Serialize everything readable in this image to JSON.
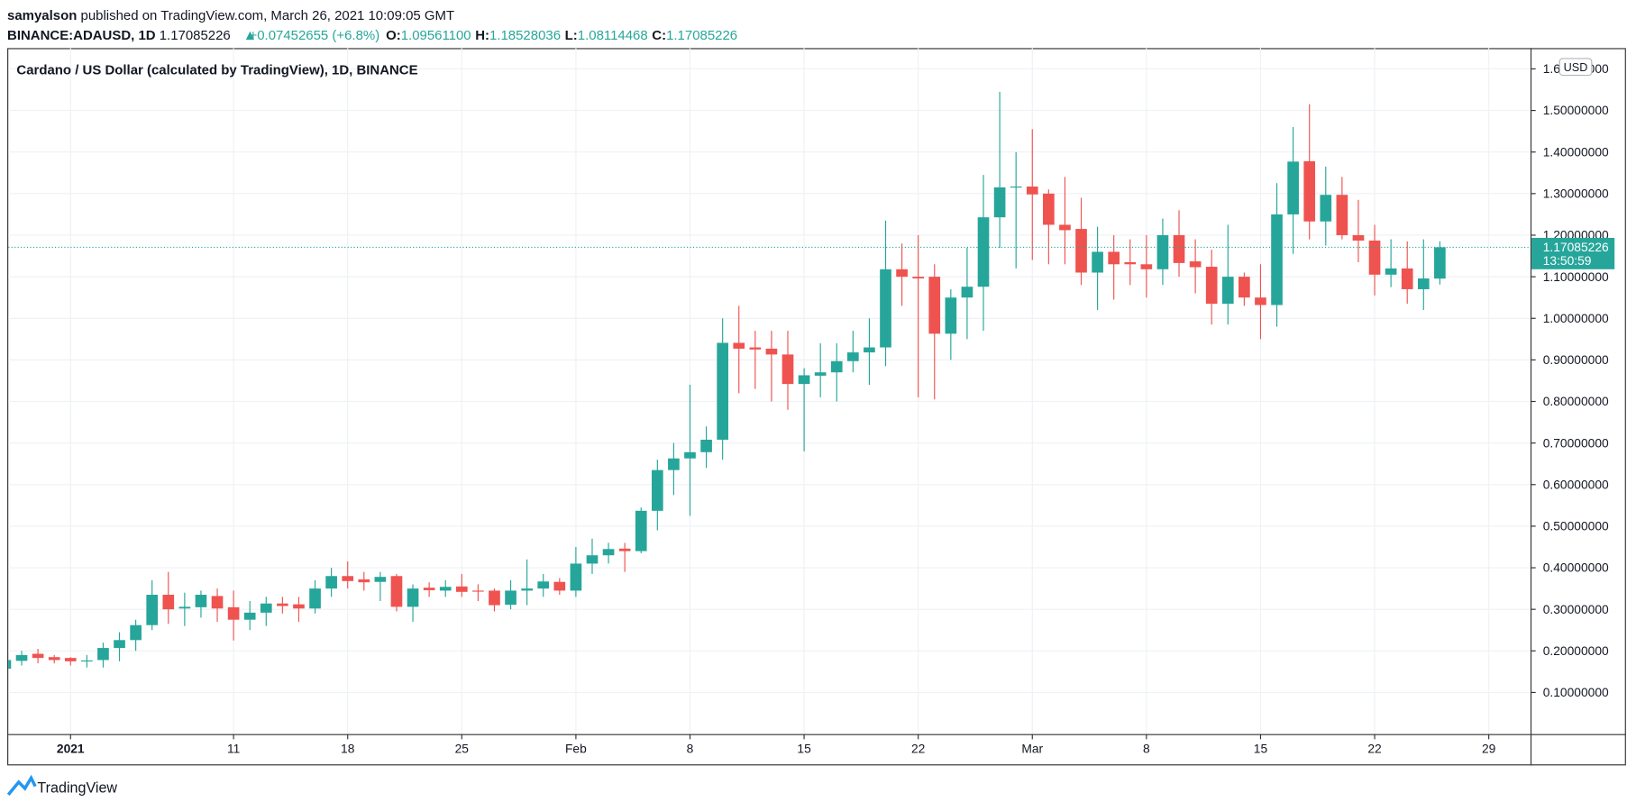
{
  "header": {
    "author": "samyalson",
    "published": "published on TradingView.com, March 26, 2021 10:09:05 GMT",
    "symbol": "BINANCE:ADAUSD, 1D",
    "last": "1.17085226",
    "change": "+0.07452655 (+6.8%)",
    "ohlc": [
      {
        "label": "O:",
        "value": "1.09561100"
      },
      {
        "label": "H:",
        "value": "1.18528036"
      },
      {
        "label": "L:",
        "value": "1.08114468"
      },
      {
        "label": "C:",
        "value": "1.17085226"
      }
    ]
  },
  "chart_data": {
    "type": "candlestick",
    "title": "Cardano / US Dollar (calculated by TradingView), 1D, BINANCE",
    "currency": "USD",
    "countdown": "13:50:59",
    "up_color": "#26a69a",
    "down_color": "#ef5350",
    "grid": true,
    "categories": [
      null,
      null,
      null,
      null,
      "2021",
      null,
      null,
      null,
      null,
      null,
      null,
      null,
      null,
      null,
      "11",
      null,
      null,
      null,
      null,
      null,
      null,
      "18",
      null,
      null,
      null,
      null,
      null,
      null,
      "25",
      null,
      null,
      null,
      null,
      null,
      null,
      "Feb",
      null,
      null,
      null,
      null,
      null,
      null,
      "8",
      null,
      null,
      null,
      null,
      null,
      null,
      "15",
      null,
      null,
      null,
      null,
      null,
      null,
      "22",
      null,
      null,
      null,
      null,
      null,
      null,
      "Mar",
      null,
      null,
      null,
      null,
      null,
      null,
      "8",
      null,
      null,
      null,
      null,
      null,
      null,
      "15",
      null,
      null,
      null,
      null,
      null,
      null,
      "22",
      null,
      null,
      null,
      null,
      null,
      null,
      "29",
      null,
      null
    ],
    "open": [
      0.157,
      0.176,
      0.193,
      0.185,
      0.183,
      0.175,
      0.178,
      0.207,
      0.226,
      0.262,
      0.335,
      0.302,
      0.305,
      0.332,
      0.305,
      0.275,
      0.292,
      0.314,
      0.312,
      0.302,
      0.35,
      0.38,
      0.372,
      0.366,
      0.38,
      0.306,
      0.352,
      0.345,
      0.355,
      0.345,
      0.345,
      0.311,
      0.345,
      0.35,
      0.366,
      0.345,
      0.41,
      0.43,
      0.446,
      0.44,
      0.537,
      0.635,
      0.663,
      0.678,
      0.708,
      0.941,
      0.93,
      0.927,
      0.913,
      0.842,
      0.862,
      0.87,
      0.897,
      0.918,
      0.93,
      1.118,
      1.1,
      1.1,
      0.963,
      1.05,
      1.076,
      1.243,
      1.315,
      1.317,
      1.3,
      1.225,
      1.215,
      1.11,
      1.16,
      1.135,
      1.13,
      1.118,
      1.2,
      1.137,
      1.124,
      1.035,
      1.1,
      1.05,
      1.032,
      1.25,
      1.378,
      1.233,
      1.297,
      1.2,
      1.187,
      1.105,
      1.12,
      1.07,
      1.095611,
      null,
      null,
      null,
      null,
      null
    ],
    "high": [
      0.18,
      0.2,
      0.205,
      0.19,
      0.185,
      0.19,
      0.22,
      0.245,
      0.275,
      0.37,
      0.39,
      0.34,
      0.345,
      0.35,
      0.345,
      0.32,
      0.33,
      0.33,
      0.33,
      0.37,
      0.4,
      0.415,
      0.39,
      0.39,
      0.385,
      0.36,
      0.365,
      0.37,
      0.385,
      0.36,
      0.35,
      0.37,
      0.42,
      0.385,
      0.375,
      0.45,
      0.47,
      0.46,
      0.46,
      0.545,
      0.66,
      0.7,
      0.84,
      0.74,
      1.0,
      1.03,
      0.97,
      0.97,
      0.97,
      0.88,
      0.94,
      0.94,
      0.97,
      1.0,
      1.235,
      1.18,
      1.2,
      1.13,
      1.07,
      1.17,
      1.345,
      1.545,
      1.4,
      1.455,
      1.31,
      1.34,
      1.29,
      1.22,
      1.2,
      1.19,
      1.2,
      1.24,
      1.26,
      1.19,
      1.165,
      1.225,
      1.11,
      1.13,
      1.325,
      1.46,
      1.515,
      1.365,
      1.34,
      1.285,
      1.225,
      1.19,
      1.185,
      1.19,
      1.18528036,
      null,
      null,
      null,
      null,
      null
    ],
    "low": [
      0.155,
      0.165,
      0.17,
      0.17,
      0.165,
      0.16,
      0.16,
      0.175,
      0.2,
      0.25,
      0.265,
      0.26,
      0.28,
      0.27,
      0.225,
      0.25,
      0.26,
      0.29,
      0.27,
      0.29,
      0.33,
      0.35,
      0.345,
      0.32,
      0.295,
      0.27,
      0.33,
      0.33,
      0.33,
      0.32,
      0.295,
      0.3,
      0.31,
      0.33,
      0.335,
      0.33,
      0.385,
      0.41,
      0.39,
      0.435,
      0.49,
      0.575,
      0.525,
      0.64,
      0.66,
      0.82,
      0.83,
      0.8,
      0.78,
      0.68,
      0.81,
      0.8,
      0.87,
      0.84,
      0.885,
      1.03,
      0.81,
      0.805,
      0.9,
      0.95,
      0.97,
      1.17,
      1.12,
      1.14,
      1.13,
      1.13,
      1.08,
      1.02,
      1.045,
      1.08,
      1.05,
      1.08,
      1.1,
      1.06,
      0.985,
      0.985,
      1.03,
      0.95,
      0.98,
      1.155,
      1.19,
      1.175,
      1.19,
      1.135,
      1.055,
      1.075,
      1.035,
      1.02,
      1.08114468,
      null,
      null,
      null,
      null,
      null
    ],
    "close": [
      0.178,
      0.19,
      0.183,
      0.178,
      0.175,
      0.177,
      0.207,
      0.226,
      0.262,
      0.335,
      0.3,
      0.306,
      0.335,
      0.302,
      0.275,
      0.292,
      0.314,
      0.308,
      0.302,
      0.35,
      0.38,
      0.368,
      0.365,
      0.378,
      0.306,
      0.35,
      0.346,
      0.354,
      0.342,
      0.343,
      0.31,
      0.345,
      0.35,
      0.367,
      0.345,
      0.41,
      0.43,
      0.445,
      0.44,
      0.537,
      0.635,
      0.663,
      0.678,
      0.708,
      0.941,
      0.927,
      0.925,
      0.913,
      0.842,
      0.863,
      0.87,
      0.897,
      0.918,
      0.93,
      1.118,
      1.1,
      1.096,
      0.963,
      1.05,
      1.076,
      1.243,
      1.315,
      1.317,
      1.298,
      1.225,
      1.212,
      1.11,
      1.16,
      1.13,
      1.13,
      1.118,
      1.2,
      1.133,
      1.123,
      1.035,
      1.1,
      1.05,
      1.032,
      1.25,
      1.377,
      1.233,
      1.297,
      1.2,
      1.187,
      1.105,
      1.12,
      1.07,
      1.096,
      1.17085226,
      null,
      null,
      null,
      null,
      null
    ],
    "ylim": [
      0.0,
      1.65
    ],
    "yticks": [
      {
        "value": 0.1,
        "label": "0.10000000"
      },
      {
        "value": 0.2,
        "label": "0.20000000"
      },
      {
        "value": 0.3,
        "label": "0.30000000"
      },
      {
        "value": 0.4,
        "label": "0.40000000"
      },
      {
        "value": 0.5,
        "label": "0.50000000"
      },
      {
        "value": 0.6,
        "label": "0.60000000"
      },
      {
        "value": 0.7,
        "label": "0.70000000"
      },
      {
        "value": 0.8,
        "label": "0.80000000"
      },
      {
        "value": 0.9,
        "label": "0.90000000"
      },
      {
        "value": 1.0,
        "label": "1.00000000"
      },
      {
        "value": 1.1,
        "label": "1.10000000"
      },
      {
        "value": 1.2,
        "label": "1.20000000"
      },
      {
        "value": 1.3,
        "label": "1.30000000"
      },
      {
        "value": 1.4,
        "label": "1.40000000"
      },
      {
        "value": 1.5,
        "label": "1.50000000"
      },
      {
        "value": 1.6,
        "label": "1.60000000"
      }
    ]
  },
  "footer": {
    "brand": "TradingView"
  }
}
